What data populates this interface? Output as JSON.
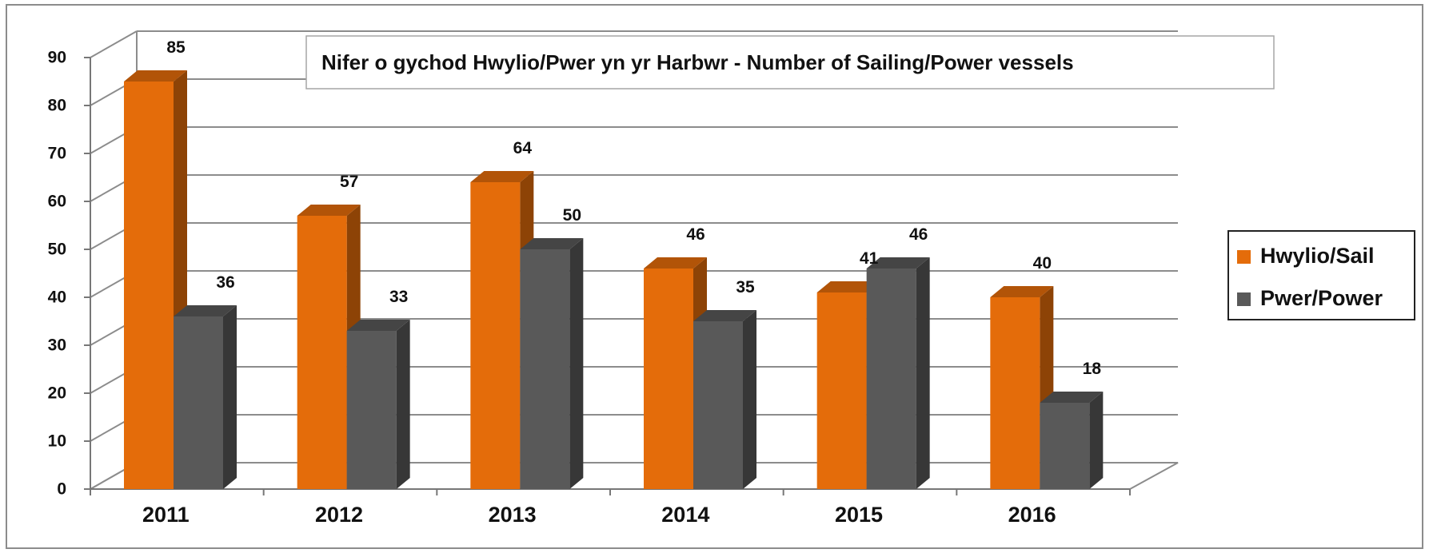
{
  "chart_data": {
    "type": "bar",
    "title": "Nifer o gychod Hwylio/Pwer yn yr Harbwr - Number of  Sailing/Power vessels",
    "categories": [
      "2011",
      "2012",
      "2013",
      "2014",
      "2015",
      "2016"
    ],
    "series": [
      {
        "name": "Hwylio/Sail",
        "values": [
          85,
          57,
          64,
          46,
          41,
          40
        ],
        "color": "#e46c0a"
      },
      {
        "name": "Pwer/Power",
        "values": [
          36,
          33,
          50,
          35,
          46,
          18
        ],
        "color": "#595959"
      }
    ],
    "ylim": [
      0,
      90
    ],
    "yticks": [
      0,
      10,
      20,
      30,
      40,
      50,
      60,
      70,
      80,
      90
    ],
    "grid": true,
    "legend_position": "right",
    "style": "3d-clustered-column"
  }
}
